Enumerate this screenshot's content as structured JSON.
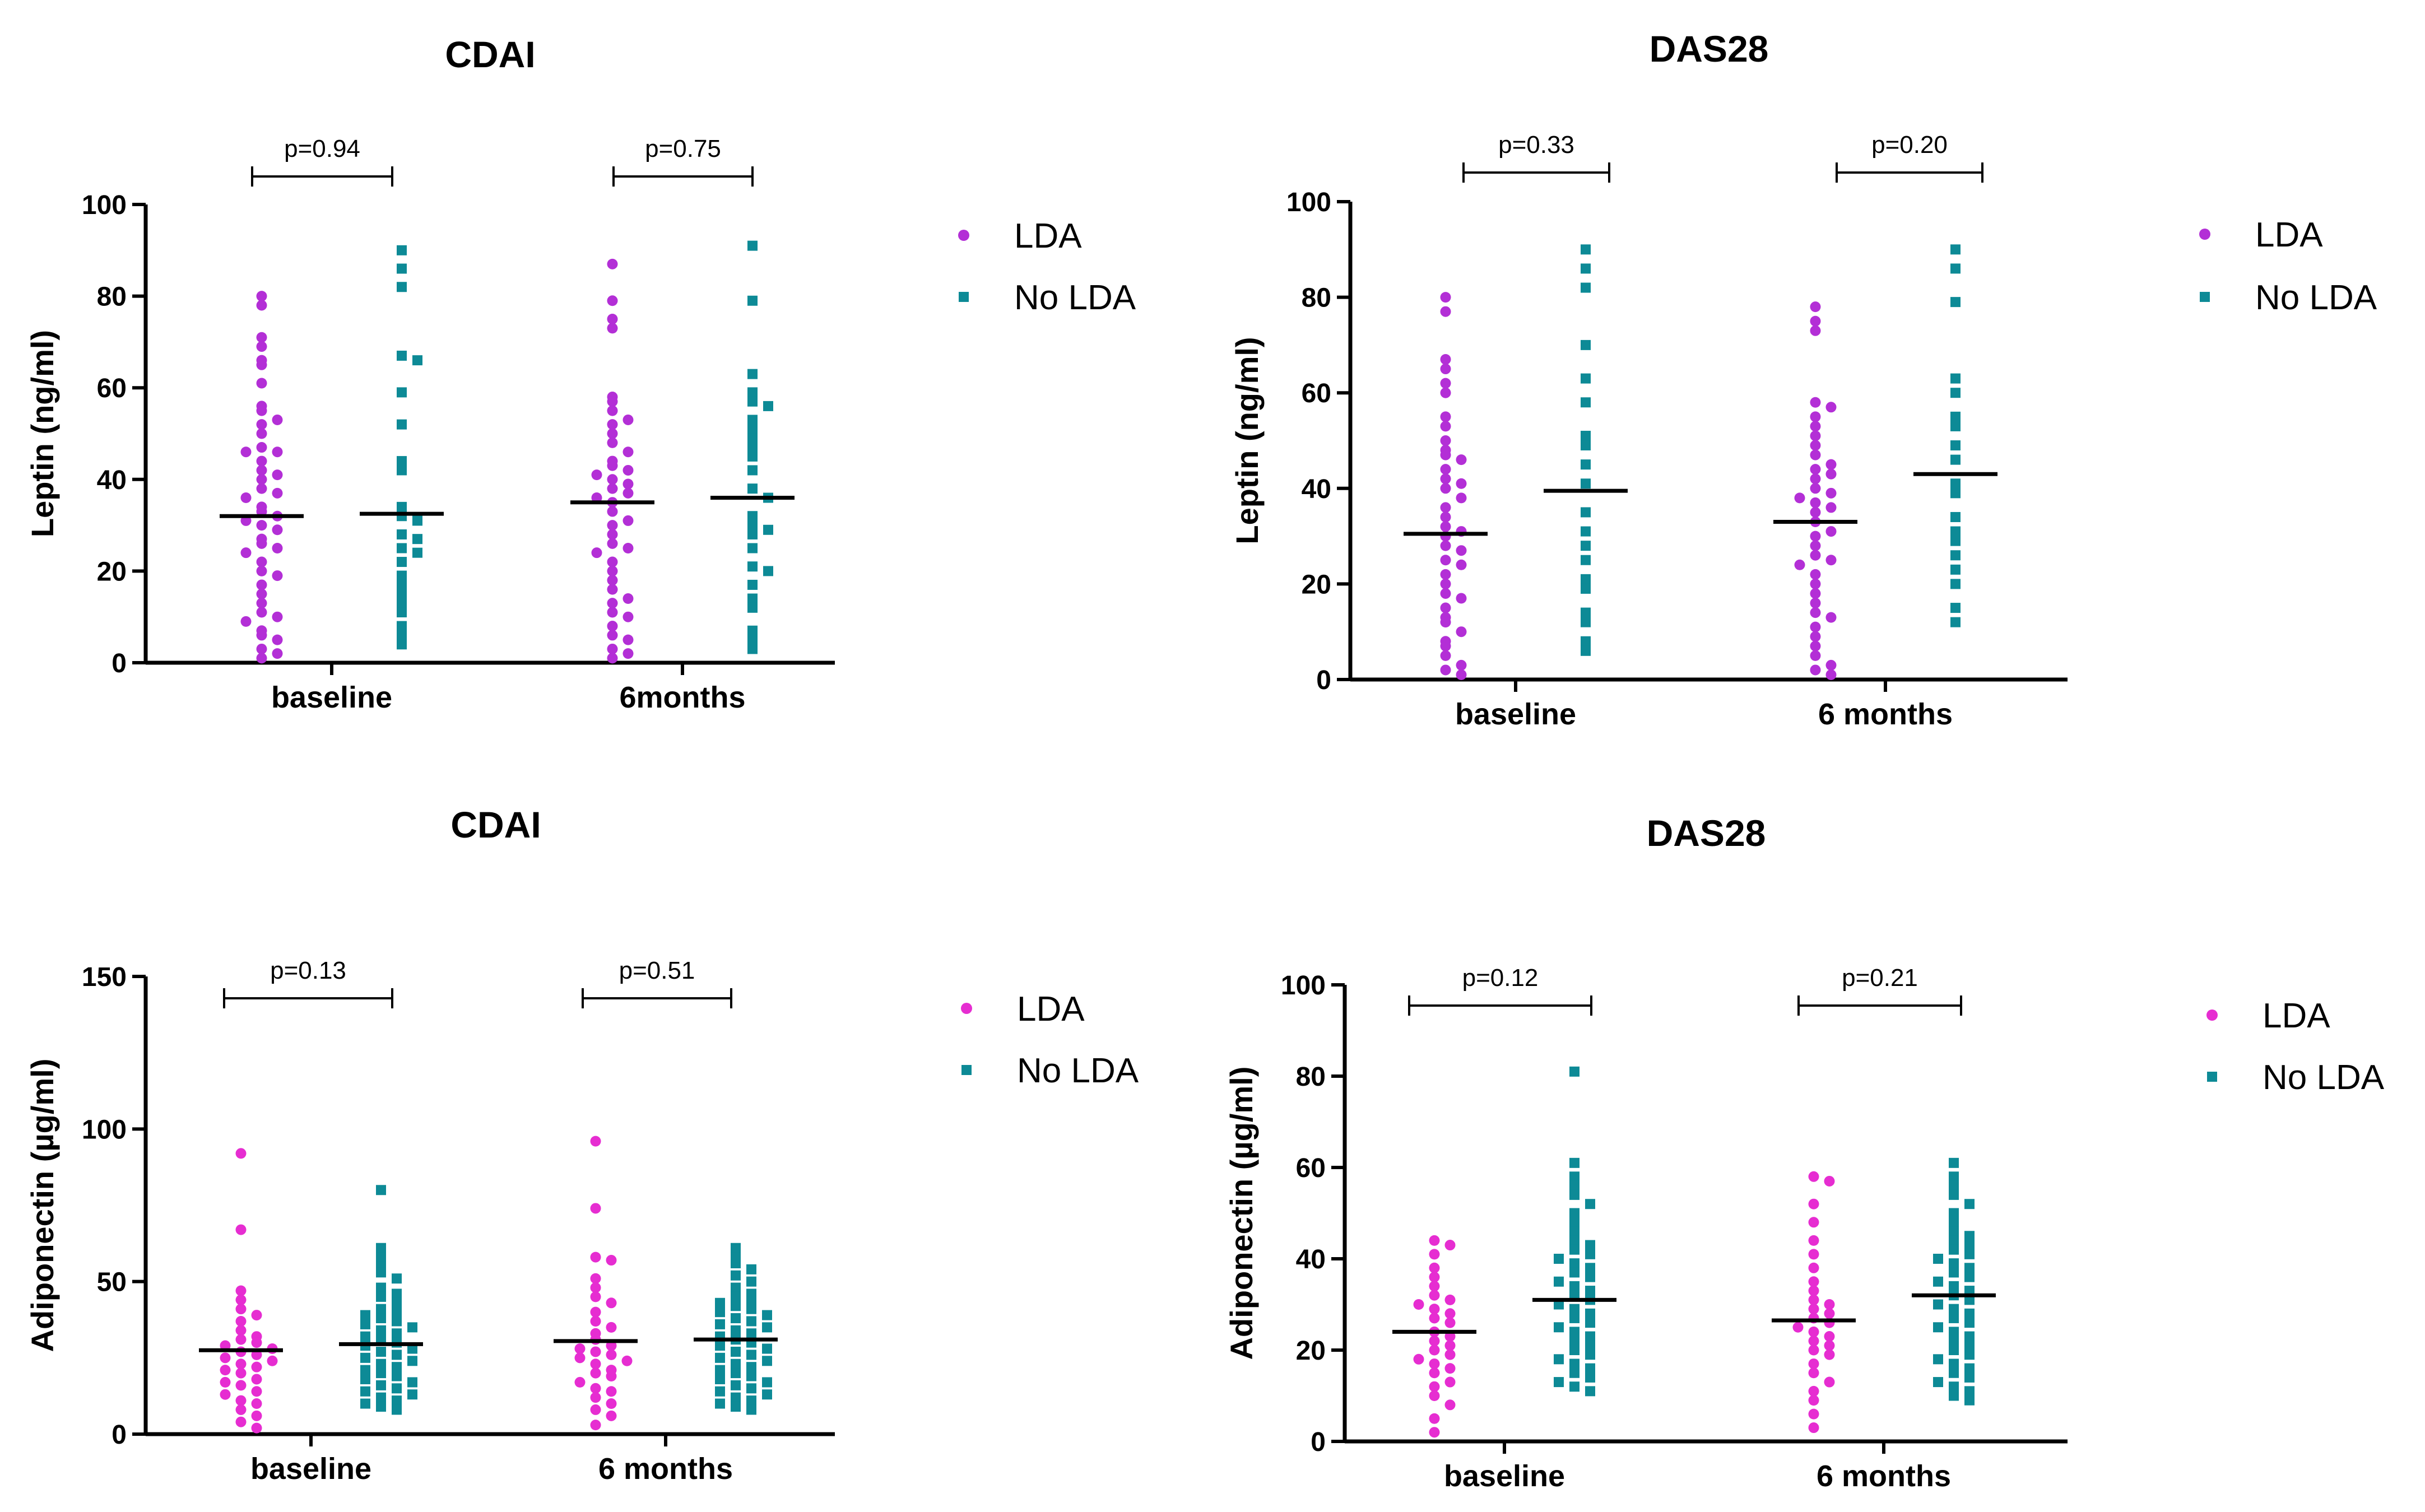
{
  "colors": {
    "purple": "#b32fd6",
    "magenta": "#e62dd1",
    "teal": "#0d8a96",
    "axis": "#000000"
  },
  "chart_data": [
    {
      "type": "scatter",
      "title": "CDAI",
      "ylabel": "Leptin (ng/ml)",
      "ylim": [
        0,
        100
      ],
      "yticks": [
        "0",
        "20",
        "40",
        "60",
        "80",
        "100"
      ],
      "categories": [
        "baseline",
        "6months"
      ],
      "legend": [
        "LDA",
        "No LDA"
      ],
      "point_color": "purple",
      "series": [
        {
          "name": "LDA",
          "groups": [
            {
              "category": "baseline",
              "mean": 32,
              "values": [
                80,
                78,
                71,
                69,
                66,
                65,
                61,
                56,
                55,
                53,
                52,
                50,
                47,
                46,
                46,
                44,
                42,
                41,
                40,
                38,
                37,
                36,
                34,
                33,
                32,
                31,
                30,
                29,
                27,
                26,
                25,
                24,
                22,
                20,
                19,
                17,
                15,
                13,
                11,
                10,
                9,
                7,
                6,
                5,
                3,
                2,
                1
              ]
            },
            {
              "category": "6months",
              "mean": 35,
              "values": [
                87,
                79,
                75,
                73,
                58,
                57,
                55,
                53,
                52,
                50,
                48,
                46,
                44,
                43,
                42,
                41,
                40,
                39,
                38,
                37,
                36,
                35,
                33,
                31,
                30,
                28,
                26,
                25,
                24,
                22,
                20,
                18,
                16,
                14,
                13,
                11,
                10,
                8,
                6,
                5,
                3,
                2,
                1
              ]
            }
          ]
        },
        {
          "name": "No LDA",
          "groups": [
            {
              "category": "baseline",
              "mean": 32.5,
              "values": [
                90,
                86,
                82,
                67,
                66,
                59,
                52,
                44,
                42,
                34,
                32,
                31,
                28,
                27,
                25,
                24,
                22,
                19,
                17,
                15,
                13,
                11,
                8,
                6,
                4
              ]
            },
            {
              "category": "6months",
              "mean": 36,
              "values": [
                91,
                79,
                63,
                59,
                57,
                56,
                53,
                51,
                49,
                47,
                45,
                42,
                38,
                36,
                32,
                30,
                29,
                28,
                25,
                21,
                20,
                17,
                14,
                12,
                7,
                5,
                3
              ]
            }
          ]
        }
      ],
      "pvalues": [
        {
          "category": "baseline",
          "text": "p=0.94"
        },
        {
          "category": "6months",
          "text": "p=0.75"
        }
      ]
    },
    {
      "type": "scatter",
      "title": "DAS28",
      "ylabel": "Leptin (ng/ml)",
      "ylim": [
        0,
        100
      ],
      "yticks": [
        "0",
        "20",
        "40",
        "60",
        "80",
        "100"
      ],
      "categories": [
        "baseline",
        "6 months"
      ],
      "legend": [
        "LDA",
        "No LDA"
      ],
      "point_color": "purple",
      "series": [
        {
          "name": "LDA",
          "groups": [
            {
              "category": "baseline",
              "mean": 30.5,
              "values": [
                80,
                77,
                67,
                65,
                62,
                60,
                55,
                53,
                50,
                48,
                47,
                46,
                44,
                42,
                41,
                40,
                38,
                36,
                34,
                32,
                31,
                30,
                28,
                27,
                25,
                24,
                22,
                20,
                18,
                17,
                15,
                13,
                12,
                10,
                8,
                7,
                5,
                3,
                2,
                1
              ]
            },
            {
              "category": "6 months",
              "mean": 33,
              "values": [
                78,
                75,
                73,
                58,
                57,
                55,
                53,
                51,
                49,
                47,
                45,
                44,
                43,
                42,
                40,
                39,
                38,
                37,
                36,
                35,
                33,
                31,
                30,
                28,
                26,
                25,
                24,
                22,
                20,
                18,
                16,
                14,
                13,
                11,
                9,
                7,
                5,
                3,
                2,
                1
              ]
            }
          ]
        },
        {
          "name": "No LDA",
          "groups": [
            {
              "category": "baseline",
              "mean": 39.5,
              "values": [
                90,
                86,
                82,
                70,
                63,
                58,
                51,
                49,
                45,
                41,
                35,
                31,
                28,
                25,
                21,
                19,
                14,
                12,
                8,
                6
              ]
            },
            {
              "category": "6 months",
              "mean": 43,
              "values": [
                90,
                86,
                79,
                63,
                60,
                55,
                53,
                49,
                46,
                41,
                39,
                34,
                31,
                29,
                26,
                23,
                20,
                15,
                12
              ]
            }
          ]
        }
      ],
      "pvalues": [
        {
          "category": "baseline",
          "text": "p=0.33"
        },
        {
          "category": "6 months",
          "text": "p=0.20"
        }
      ]
    },
    {
      "type": "scatter",
      "title": "CDAI",
      "ylabel": "Adiponectin (µg/ml)",
      "ylim": [
        0,
        150
      ],
      "yticks": [
        "0",
        "50",
        "100",
        "150"
      ],
      "categories": [
        "baseline",
        "6 months"
      ],
      "legend": [
        "LDA",
        "No LDA"
      ],
      "point_color": "magenta",
      "series": [
        {
          "name": "LDA",
          "groups": [
            {
              "category": "baseline",
              "mean": 27.5,
              "values": [
                92,
                67,
                47,
                44,
                41,
                39,
                37,
                34,
                32,
                31,
                30,
                29,
                28,
                27,
                26,
                25,
                24,
                23,
                22,
                21,
                20,
                18,
                17,
                16,
                14,
                13,
                11,
                10,
                8,
                6,
                4,
                2
              ]
            },
            {
              "category": "6 months",
              "mean": 30.5,
              "values": [
                96,
                74,
                58,
                57,
                51,
                48,
                45,
                43,
                40,
                37,
                35,
                33,
                31,
                29,
                28,
                27,
                26,
                25,
                24,
                23,
                21,
                20,
                19,
                17,
                15,
                14,
                12,
                10,
                8,
                6,
                3
              ]
            }
          ]
        },
        {
          "name": "No LDA",
          "groups": [
            {
              "category": "baseline",
              "mean": 29.5,
              "values": [
                80,
                61,
                58,
                55,
                53,
                51,
                48,
                46,
                45,
                43,
                41,
                40,
                39,
                38,
                37,
                36,
                35,
                34,
                33,
                32,
                31,
                30,
                29,
                28,
                27,
                26,
                25,
                24,
                23,
                22,
                21,
                20,
                19,
                18,
                17,
                16,
                15,
                14,
                13,
                12,
                11,
                10,
                9,
                8
              ]
            },
            {
              "category": "6 months",
              "mean": 31,
              "values": [
                61,
                58,
                56,
                54,
                52,
                50,
                48,
                46,
                45,
                44,
                43,
                42,
                41,
                40,
                39,
                38,
                37,
                36,
                35,
                34,
                33,
                32,
                31,
                30,
                29,
                28,
                27,
                26,
                25,
                24,
                23,
                22,
                21,
                20,
                19,
                18,
                17,
                16,
                15,
                14,
                13,
                12,
                11,
                10,
                9,
                8
              ]
            }
          ]
        }
      ],
      "pvalues": [
        {
          "category": "baseline",
          "text": "p=0.13"
        },
        {
          "category": "6 months",
          "text": "p=0.51"
        }
      ]
    },
    {
      "type": "scatter",
      "title": "DAS28",
      "ylabel": "Adiponectin (µg/ml)",
      "ylim": [
        0,
        100
      ],
      "yticks": [
        "0",
        "20",
        "40",
        "60",
        "80",
        "100"
      ],
      "categories": [
        "baseline",
        "6 months"
      ],
      "legend": [
        "LDA",
        "No LDA"
      ],
      "point_color": "magenta",
      "series": [
        {
          "name": "LDA",
          "groups": [
            {
              "category": "baseline",
              "mean": 24,
              "values": [
                44,
                43,
                41,
                38,
                36,
                34,
                32,
                31,
                30,
                29,
                28,
                27,
                26,
                24,
                23,
                22,
                21,
                20,
                19,
                18,
                17,
                16,
                15,
                13,
                12,
                10,
                8,
                5,
                2
              ]
            },
            {
              "category": "6 months",
              "mean": 26.5,
              "values": [
                58,
                57,
                52,
                48,
                44,
                41,
                38,
                35,
                33,
                31,
                30,
                29,
                28,
                27,
                26,
                25,
                24,
                23,
                22,
                21,
                20,
                19,
                17,
                15,
                13,
                11,
                9,
                6,
                3
              ]
            }
          ]
        },
        {
          "name": "No LDA",
          "groups": [
            {
              "category": "baseline",
              "mean": 31,
              "values": [
                81,
                61,
                58,
                56,
                54,
                52,
                50,
                48,
                46,
                44,
                43,
                42,
                41,
                40,
                39,
                38,
                37,
                36,
                35,
                34,
                33,
                32,
                31,
                30,
                29,
                28,
                27,
                26,
                25,
                24,
                23,
                22,
                21,
                20,
                19,
                18,
                17,
                16,
                15,
                14,
                13,
                12,
                11
              ]
            },
            {
              "category": "6 months",
              "mean": 32,
              "values": [
                61,
                58,
                56,
                54,
                52,
                50,
                48,
                46,
                45,
                44,
                43,
                42,
                41,
                40,
                39,
                38,
                37,
                36,
                35,
                34,
                33,
                32,
                31,
                30,
                29,
                28,
                27,
                26,
                25,
                24,
                23,
                22,
                21,
                20,
                19,
                18,
                17,
                16,
                15,
                14,
                13,
                12,
                11,
                10,
                9
              ]
            }
          ]
        }
      ],
      "pvalues": [
        {
          "category": "baseline",
          "text": "p=0.12"
        },
        {
          "category": "6 months",
          "text": "p=0.21"
        }
      ]
    }
  ]
}
